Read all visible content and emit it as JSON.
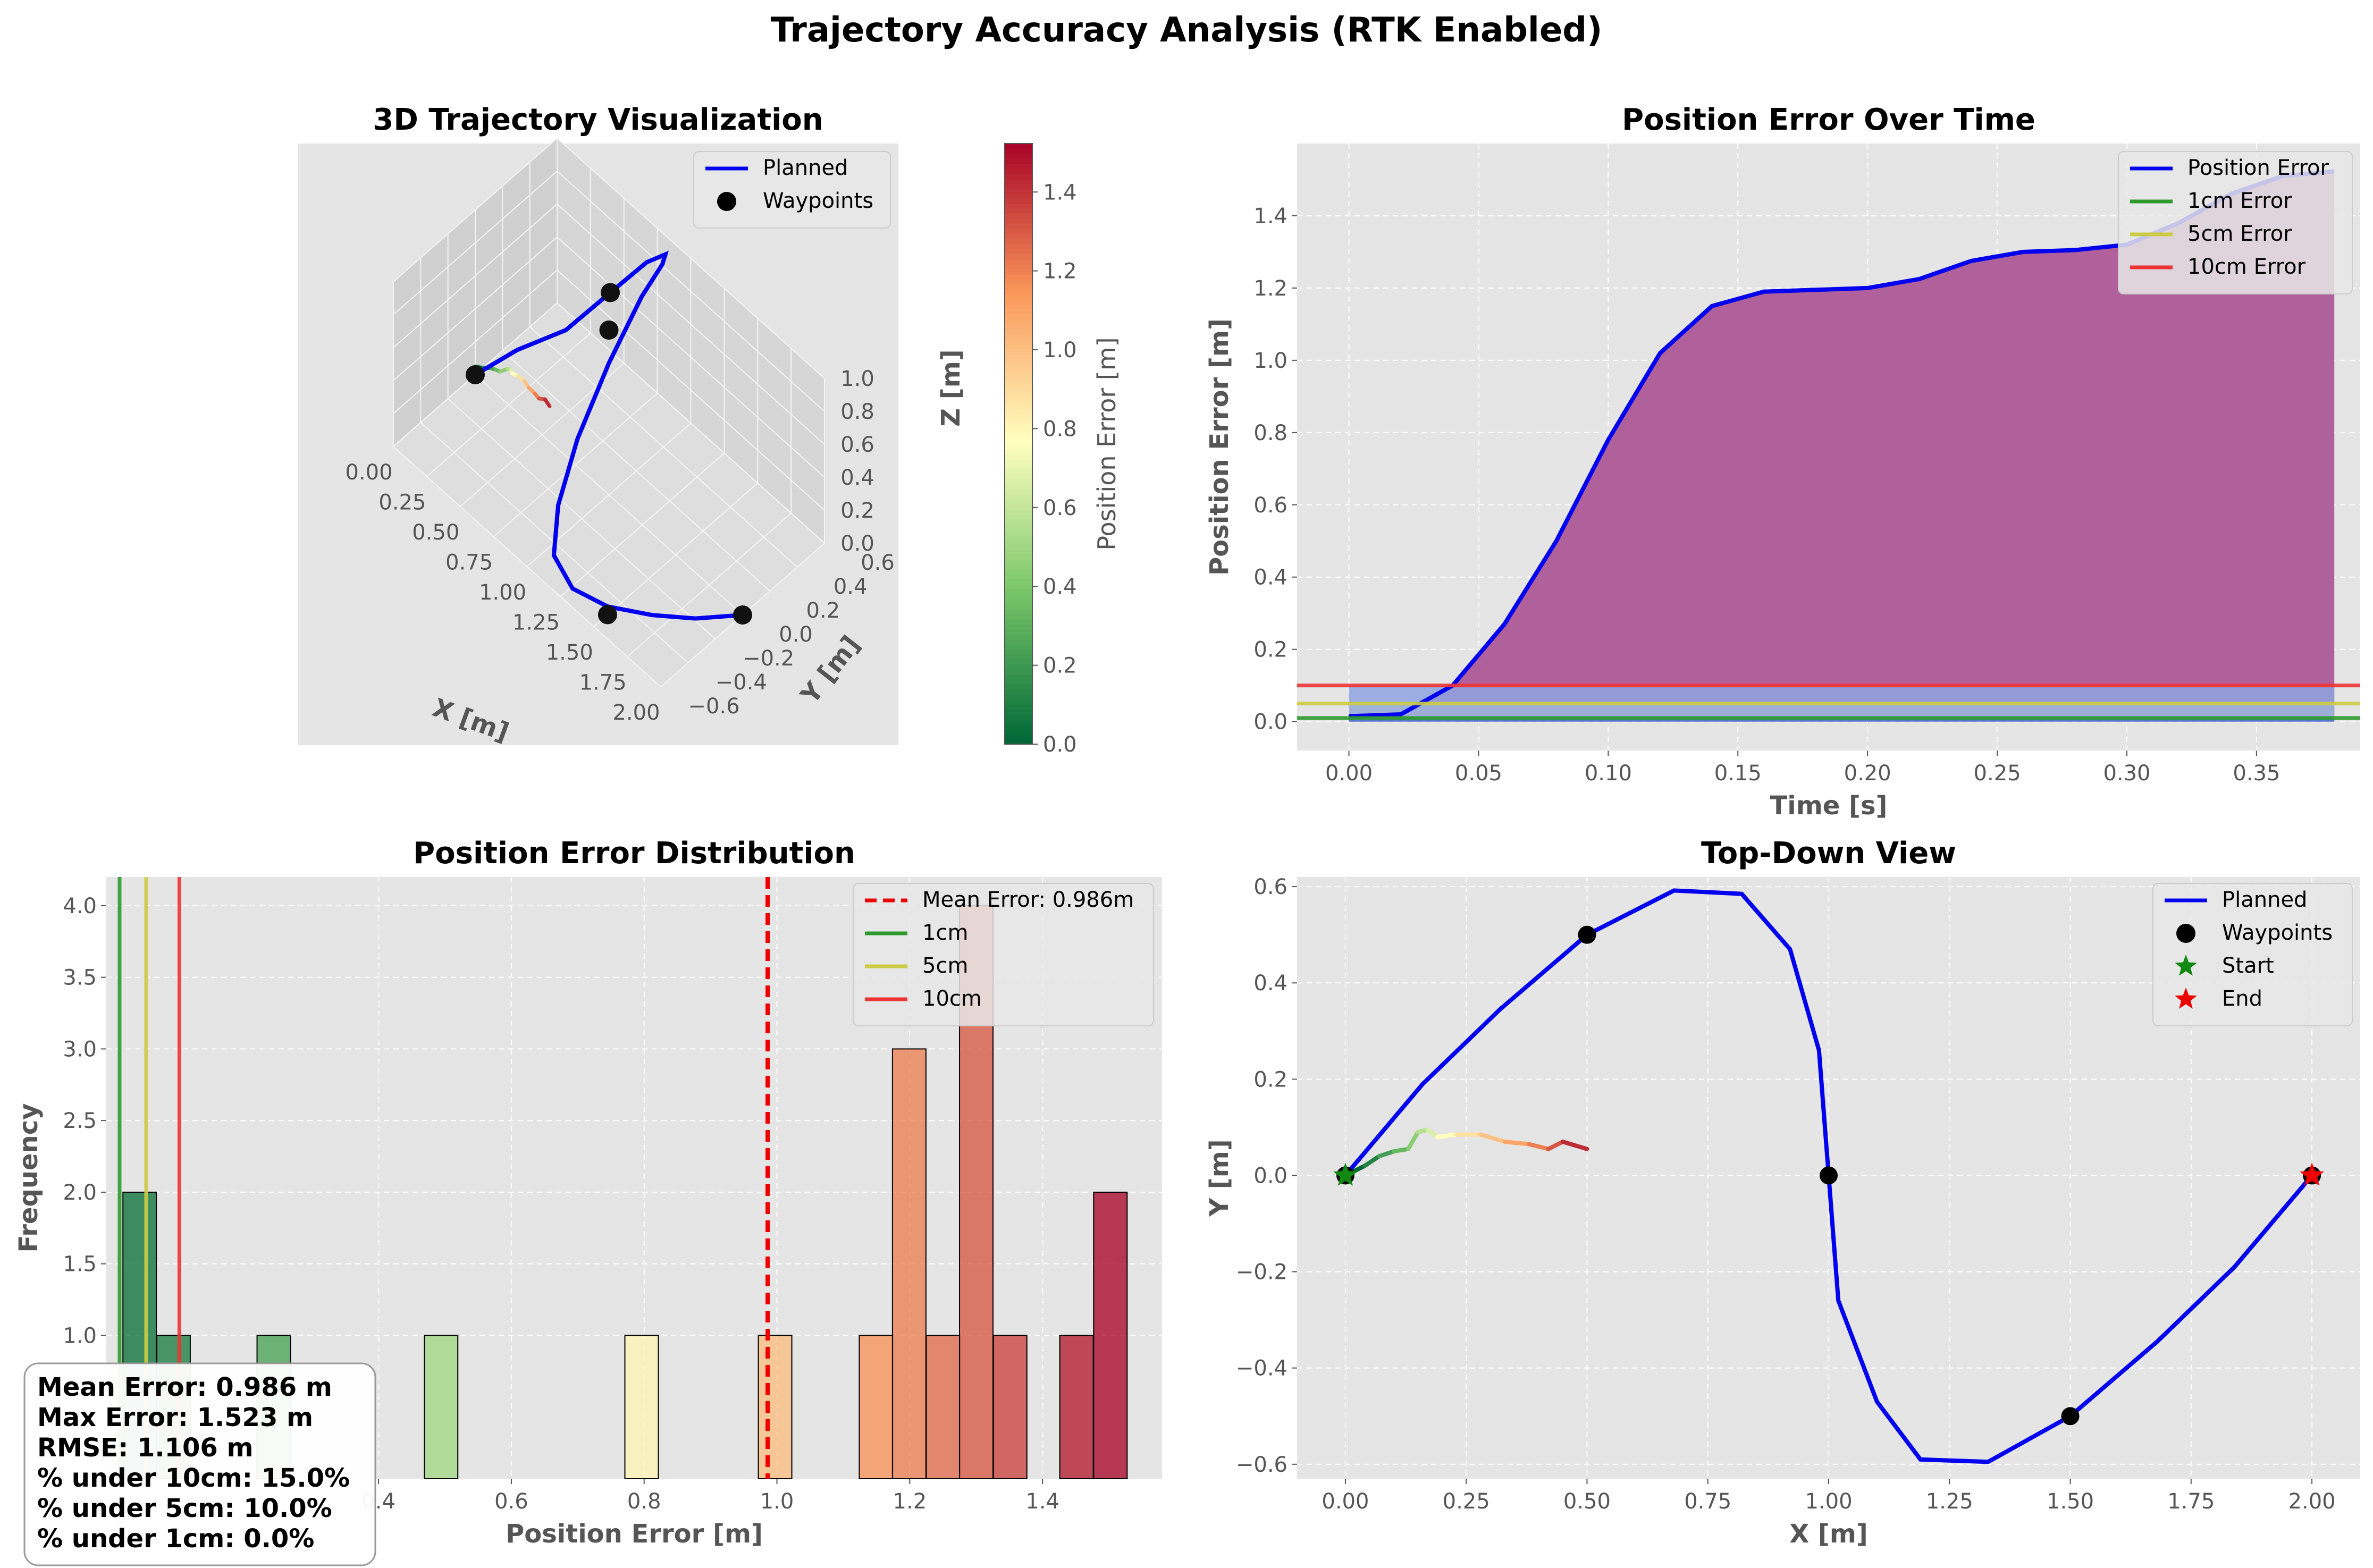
{
  "suptitle": "Trajectory Accuracy Analysis (RTK Enabled)",
  "colors": {
    "planned": "#0000ee",
    "bg": "#e5e5e5",
    "grid": "#ffffff",
    "green": "#2e9a2e",
    "yellow": "#cccc44",
    "red": "#ee3333",
    "meanline": "#ee0000",
    "fill": "#b0619b"
  },
  "chart_data": [
    {
      "id": "traj3d",
      "type": "line",
      "title": "3D Trajectory Visualization",
      "xlabel": "X [m]",
      "ylabel": "Y [m]",
      "zlabel": "Z [m]",
      "xticks": [
        "0.00",
        "0.25",
        "0.50",
        "0.75",
        "1.00",
        "1.25",
        "1.50",
        "1.75",
        "2.00"
      ],
      "yticks": [
        "−0.6",
        "−0.4",
        "−0.2",
        "0.0",
        "0.2",
        "0.4",
        "0.6"
      ],
      "zticks": [
        "0.0",
        "0.2",
        "0.4",
        "0.6",
        "0.8",
        "1.0"
      ],
      "xlim": [
        0,
        2
      ],
      "ylim": [
        -0.6,
        0.6
      ],
      "zlim": [
        0,
        1
      ],
      "legend": [
        {
          "label": "Planned",
          "kind": "line"
        },
        {
          "label": "Waypoints",
          "kind": "dot"
        }
      ],
      "planned": [
        [
          0,
          0,
          0
        ],
        [
          0.12,
          0.19,
          0.1
        ],
        [
          0.32,
          0.35,
          0.25
        ],
        [
          0.5,
          0.5,
          0.5
        ],
        [
          0.68,
          0.59,
          0.75
        ],
        [
          0.82,
          0.59,
          0.9
        ],
        [
          0.92,
          0.47,
          1.0
        ],
        [
          0.98,
          0.26,
          1.0
        ],
        [
          1.0,
          0.0,
          0.8
        ],
        [
          1.03,
          -0.26,
          0.55
        ],
        [
          1.1,
          -0.47,
          0.35
        ],
        [
          1.19,
          -0.59,
          0.2
        ],
        [
          1.33,
          -0.59,
          0.1
        ],
        [
          1.5,
          -0.5,
          0.05
        ],
        [
          1.68,
          -0.35,
          0.02
        ],
        [
          1.84,
          -0.19,
          0.0
        ],
        [
          2.0,
          0.0,
          0.0
        ]
      ],
      "waypoints": [
        [
          0,
          0,
          0
        ],
        [
          0.5,
          0.5,
          0.5
        ],
        [
          1.0,
          0.0,
          1.0
        ],
        [
          1.5,
          -0.5,
          0.0
        ],
        [
          2.0,
          0.0,
          0.0
        ]
      ],
      "colorbar": {
        "label": "Position Error [m]",
        "ticks": [
          "0.0",
          "0.2",
          "0.4",
          "0.6",
          "0.8",
          "1.0",
          "1.2",
          "1.4"
        ],
        "range": [
          0,
          1.523
        ]
      }
    },
    {
      "id": "errtime",
      "type": "area",
      "title": "Position Error Over Time",
      "xlabel": "Time [s]",
      "ylabel": "Position Error [m]",
      "xlim": [
        -0.02,
        0.39
      ],
      "ylim": [
        -0.08,
        1.6
      ],
      "xticks": [
        "0.00",
        "0.05",
        "0.10",
        "0.15",
        "0.20",
        "0.25",
        "0.30",
        "0.35"
      ],
      "yticks": [
        "0.0",
        "0.2",
        "0.4",
        "0.6",
        "0.8",
        "1.0",
        "1.2",
        "1.4"
      ],
      "x": [
        0,
        0.02,
        0.04,
        0.06,
        0.08,
        0.1,
        0.12,
        0.14,
        0.16,
        0.18,
        0.2,
        0.22,
        0.24,
        0.26,
        0.28,
        0.3,
        0.32,
        0.34,
        0.36,
        0.38
      ],
      "y": [
        0.015,
        0.02,
        0.1,
        0.27,
        0.5,
        0.78,
        1.02,
        1.15,
        1.19,
        1.195,
        1.2,
        1.225,
        1.275,
        1.3,
        1.305,
        1.32,
        1.38,
        1.46,
        1.51,
        1.523
      ],
      "hlines": [
        {
          "label": "1cm Error",
          "value": 0.01
        },
        {
          "label": "5cm Error",
          "value": 0.05
        },
        {
          "label": "10cm Error",
          "value": 0.1
        }
      ],
      "legend": [
        "Position Error",
        "1cm Error",
        "5cm Error",
        "10cm Error"
      ]
    },
    {
      "id": "hist",
      "type": "bar",
      "title": "Position Error Distribution",
      "xlabel": "Position Error [m]",
      "ylabel": "Frequency",
      "xlim": [
        -0.01,
        1.58
      ],
      "ylim": [
        0,
        4.2
      ],
      "xticks": [
        "0.4",
        "0.6",
        "0.8",
        "1.0",
        "1.2",
        "1.4"
      ],
      "yticks": [
        "1.0",
        "1.5",
        "2.0",
        "2.5",
        "3.0",
        "3.5",
        "4.0"
      ],
      "bin_width": 0.0504,
      "bins": [
        [
          0.015,
          2
        ],
        [
          0.066,
          1
        ],
        [
          0.217,
          1
        ],
        [
          0.469,
          1
        ],
        [
          0.771,
          1
        ],
        [
          0.972,
          1
        ],
        [
          1.124,
          1
        ],
        [
          1.174,
          3
        ],
        [
          1.225,
          1
        ],
        [
          1.275,
          4
        ],
        [
          1.326,
          1
        ],
        [
          1.426,
          1
        ],
        [
          1.477,
          2
        ]
      ],
      "mean": 0.986,
      "vlines": [
        {
          "label": "1cm",
          "value": 0.01
        },
        {
          "label": "5cm",
          "value": 0.05
        },
        {
          "label": "10cm",
          "value": 0.1
        }
      ],
      "legend": [
        "Mean Error: 0.986m",
        "1cm",
        "5cm",
        "10cm"
      ],
      "stats": [
        "Mean Error: 0.986 m",
        "Max Error: 1.523 m",
        "RMSE: 1.106 m",
        "% under 10cm: 15.0%",
        "% under 5cm: 10.0%",
        "% under 1cm: 0.0%"
      ]
    },
    {
      "id": "topdown",
      "type": "line",
      "title": "Top-Down View",
      "xlabel": "X [m]",
      "ylabel": "Y [m]",
      "xlim": [
        -0.1,
        2.1
      ],
      "ylim": [
        -0.63,
        0.62
      ],
      "xticks": [
        "0.00",
        "0.25",
        "0.50",
        "0.75",
        "1.00",
        "1.25",
        "1.50",
        "1.75",
        "2.00"
      ],
      "yticks": [
        "−0.6",
        "−0.4",
        "−0.2",
        "0.0",
        "0.2",
        "0.4",
        "0.6"
      ],
      "planned": [
        [
          0,
          0
        ],
        [
          0.16,
          0.19
        ],
        [
          0.32,
          0.345
        ],
        [
          0.5,
          0.5
        ],
        [
          0.68,
          0.592
        ],
        [
          0.82,
          0.585
        ],
        [
          0.92,
          0.47
        ],
        [
          0.98,
          0.26
        ],
        [
          1.0,
          0.0
        ],
        [
          1.02,
          -0.26
        ],
        [
          1.1,
          -0.47
        ],
        [
          1.19,
          -0.59
        ],
        [
          1.33,
          -0.595
        ],
        [
          1.5,
          -0.5
        ],
        [
          1.68,
          -0.345
        ],
        [
          1.84,
          -0.19
        ],
        [
          2.0,
          0.0
        ]
      ],
      "actual": [
        [
          0,
          0
        ],
        [
          0.04,
          0.02
        ],
        [
          0.07,
          0.04
        ],
        [
          0.1,
          0.05
        ],
        [
          0.13,
          0.055
        ],
        [
          0.15,
          0.09
        ],
        [
          0.17,
          0.095
        ],
        [
          0.19,
          0.08
        ],
        [
          0.23,
          0.085
        ],
        [
          0.28,
          0.085
        ],
        [
          0.33,
          0.07
        ],
        [
          0.38,
          0.065
        ],
        [
          0.42,
          0.055
        ],
        [
          0.45,
          0.07
        ],
        [
          0.5,
          0.055
        ]
      ],
      "waypoints": [
        [
          0,
          0
        ],
        [
          0.5,
          0.5
        ],
        [
          1.0,
          0.0
        ],
        [
          1.5,
          -0.5
        ],
        [
          2.0,
          0.0
        ]
      ],
      "start": [
        0,
        0
      ],
      "end": [
        2,
        0
      ],
      "legend": [
        "Planned",
        "Waypoints",
        "Start",
        "End"
      ]
    }
  ]
}
